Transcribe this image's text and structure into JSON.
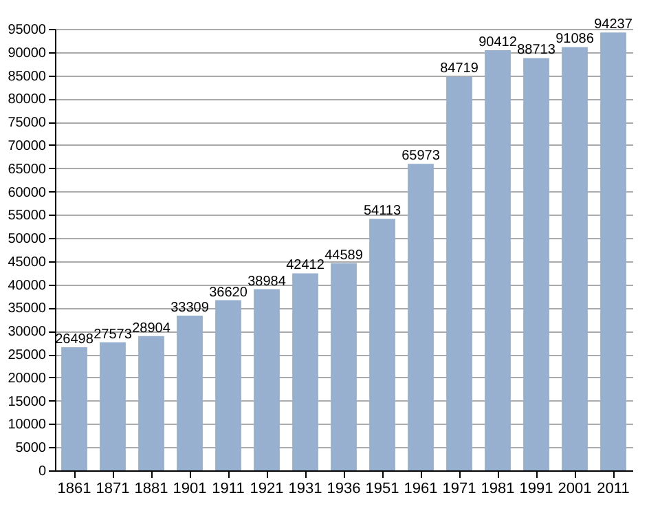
{
  "chart_data": {
    "type": "bar",
    "categories": [
      "1861",
      "1871",
      "1881",
      "1901",
      "1911",
      "1921",
      "1931",
      "1936",
      "1951",
      "1961",
      "1971",
      "1981",
      "1991",
      "2001",
      "2011"
    ],
    "values": [
      26498,
      27573,
      28904,
      33309,
      36620,
      38984,
      42412,
      44589,
      54113,
      65973,
      84719,
      90412,
      88713,
      91086,
      94237
    ],
    "color": "#97b0cf",
    "ylim": [
      0,
      95000
    ],
    "yticks": [
      0,
      5000,
      10000,
      15000,
      20000,
      25000,
      30000,
      35000,
      40000,
      45000,
      50000,
      55000,
      60000,
      65000,
      70000,
      75000,
      80000,
      85000,
      90000,
      95000
    ],
    "grid": "y",
    "data_labels": true
  }
}
